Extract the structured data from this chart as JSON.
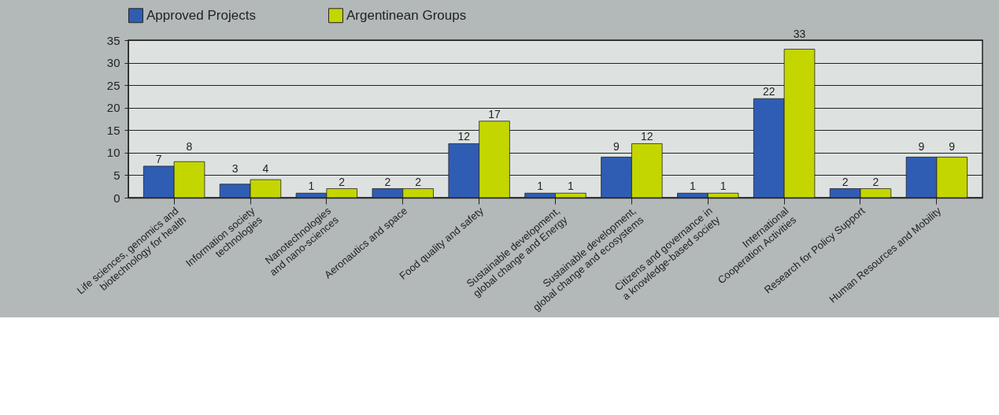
{
  "chart_data": {
    "type": "bar",
    "categories": [
      "Life sciences, genomics and biotechnology for health",
      "Information society technologies",
      "Nanotechnologies and nano-sciences",
      "Aeronautics and space",
      "Food quality and safety",
      "Sustainable development, global change and Energy",
      "Sustainable development, global change and ecosystems",
      "Citizens and governance in a knowledge-based society",
      "International Cooperation Activities",
      "Research for Policy Support",
      "Human Resources and Mobility"
    ],
    "series": [
      {
        "name": "Approved Projects",
        "color": "#2f5db4",
        "values": [
          7,
          3,
          1,
          2,
          12,
          1,
          9,
          1,
          22,
          2,
          9
        ]
      },
      {
        "name": "Argentinean Groups",
        "color": "#c4d600",
        "values": [
          8,
          4,
          2,
          2,
          17,
          1,
          12,
          1,
          33,
          2,
          9
        ]
      }
    ],
    "ylim": [
      0,
      35
    ],
    "yticks": [
      0,
      5,
      10,
      15,
      20,
      25,
      30,
      35
    ],
    "grid": "y",
    "legend": "top left",
    "data_labels": true
  }
}
